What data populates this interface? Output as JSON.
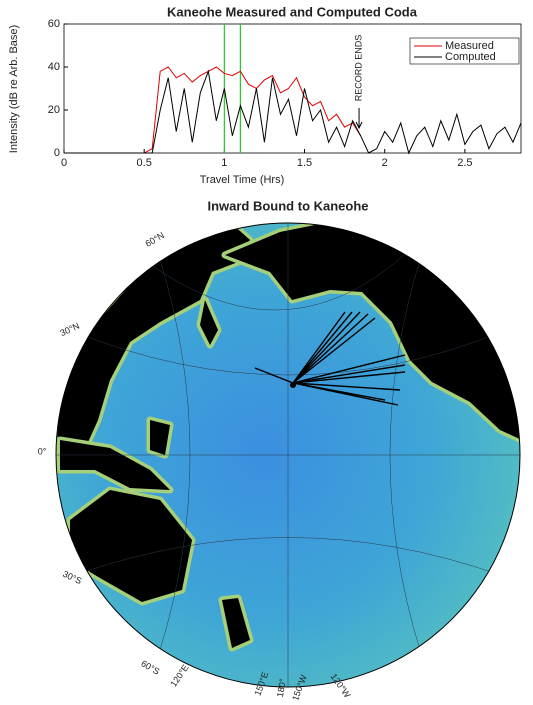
{
  "chart_data": [
    {
      "type": "line",
      "title": "Kaneohe Measured and Computed Coda",
      "xlabel": "Travel Time (Hrs)",
      "ylabel": "Intensity (dB re Arb. Base)",
      "x": [
        0,
        0.05,
        0.1,
        0.15,
        0.2,
        0.25,
        0.3,
        0.35,
        0.4,
        0.45,
        0.5,
        0.55,
        0.6,
        0.65,
        0.7,
        0.75,
        0.8,
        0.85,
        0.9,
        0.95,
        1,
        1.05,
        1.1,
        1.15,
        1.2,
        1.25,
        1.3,
        1.35,
        1.4,
        1.45,
        1.5,
        1.55,
        1.6,
        1.65,
        1.7,
        1.75,
        1.8,
        1.85,
        1.9,
        1.95,
        2,
        2.05,
        2.1,
        2.15,
        2.2,
        2.25,
        2.3,
        2.35,
        2.4,
        2.45,
        2.5,
        2.55,
        2.6,
        2.65,
        2.7,
        2.75,
        2.8,
        2.85
      ],
      "series": [
        {
          "name": "Measured",
          "color": "#e00000",
          "values": [
            0,
            0,
            0,
            0,
            0,
            0,
            0,
            0,
            0,
            0,
            0,
            2,
            38,
            40,
            35,
            37,
            33,
            36,
            38,
            40,
            37,
            36,
            38,
            32,
            30,
            34,
            36,
            28,
            30,
            35,
            26,
            22,
            24,
            15,
            18,
            12,
            14,
            8,
            null,
            null,
            null,
            null,
            null,
            null,
            null,
            null,
            null,
            null,
            null,
            null,
            null,
            null,
            null,
            null,
            null,
            null,
            null,
            null
          ]
        },
        {
          "name": "Computed",
          "color": "#000000",
          "values": [
            0,
            0,
            0,
            0,
            0,
            0,
            0,
            0,
            0,
            0,
            0,
            0,
            20,
            35,
            10,
            30,
            5,
            28,
            38,
            15,
            30,
            8,
            22,
            12,
            30,
            5,
            35,
            18,
            25,
            8,
            30,
            15,
            20,
            5,
            12,
            3,
            15,
            8,
            0,
            2,
            10,
            5,
            14,
            0,
            8,
            12,
            3,
            15,
            6,
            18,
            4,
            10,
            13,
            2,
            9,
            12,
            5,
            14
          ]
        }
      ],
      "xlim": [
        0,
        2.85
      ],
      "ylim": [
        0,
        60
      ],
      "xticks": [
        0,
        0.5,
        1,
        1.5,
        2,
        2.5
      ],
      "yticks": [
        0,
        20,
        40,
        60
      ],
      "vlines": [
        1,
        1.1
      ],
      "vline_color": "#22cc22",
      "annotation": {
        "text": "RECORD ENDS",
        "x": 1.84
      },
      "legend": "upper right"
    },
    {
      "type": "map",
      "title": "Inward Bound to Kaneohe",
      "lat_labels": [
        "60°N",
        "30°N",
        "0°",
        "30°S",
        "60°S"
      ],
      "lon_labels": [
        "120°E",
        "150°E",
        "180°",
        "150°W",
        "120°W"
      ]
    }
  ]
}
